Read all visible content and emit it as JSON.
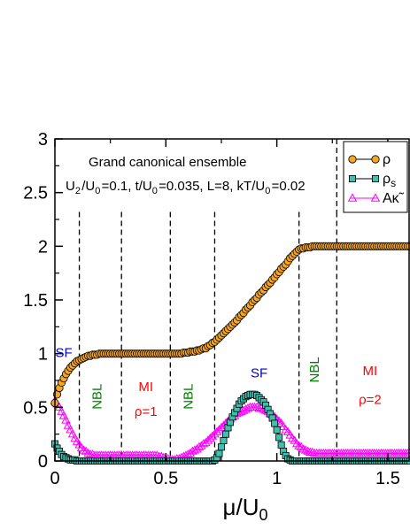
{
  "chart_data": {
    "type": "scatter",
    "xlabel": "μ/U",
    "xlabel_sub": "0",
    "xlim": [
      0,
      1.6
    ],
    "ylim": [
      0,
      3
    ],
    "x_ticks": [
      "0",
      "0.5",
      "1",
      "1.5"
    ],
    "x_tick_values": [
      0,
      0.5,
      1,
      1.5
    ],
    "y_ticks": [
      "0",
      "0.5",
      "1",
      "1.5",
      "2",
      "2.5",
      "3"
    ],
    "y_tick_values": [
      0,
      0.5,
      1,
      1.5,
      2,
      2.5,
      3
    ],
    "annotation_title": "Grand canonical ensemble",
    "annotation_params": [
      {
        "text": "U",
        "sub": "2"
      },
      {
        "text": "/U",
        "sub": "0"
      },
      {
        "text": "=0.1, t/U",
        "sub": "0"
      },
      {
        "text": "=0.035, L=8, kT/U",
        "sub": "0"
      },
      {
        "text": "=0.02",
        "sub": ""
      }
    ],
    "vlines": [
      0.11,
      0.3,
      0.52,
      0.72,
      1.1,
      1.27
    ],
    "regions": [
      {
        "text": "SF",
        "x": 0.04,
        "y": 0.97,
        "color": "#0000cc",
        "rotate": false
      },
      {
        "text": "NBL",
        "x": 0.21,
        "y": 0.6,
        "color": "#008000",
        "rotate": true
      },
      {
        "text": "MI",
        "x": 0.41,
        "y": 0.65,
        "color": "#ff0000",
        "rotate": false
      },
      {
        "text": "ρ=1",
        "x": 0.41,
        "y": 0.42,
        "color": "#ff0000",
        "rotate": false
      },
      {
        "text": "NBL",
        "x": 0.62,
        "y": 0.6,
        "color": "#008000",
        "rotate": true
      },
      {
        "text": "SF",
        "x": 0.92,
        "y": 0.78,
        "color": "#0000cc",
        "rotate": false
      },
      {
        "text": "NBL",
        "x": 1.19,
        "y": 0.85,
        "color": "#008000",
        "rotate": true
      },
      {
        "text": "MI",
        "x": 1.42,
        "y": 0.8,
        "color": "#ff0000",
        "rotate": false
      },
      {
        "text": "ρ=2",
        "x": 1.42,
        "y": 0.53,
        "color": "#ff0000",
        "rotate": false
      }
    ],
    "legend_position": "top-right",
    "series": [
      {
        "name": "ρ",
        "name_sub": "",
        "marker": "circle",
        "color": "#f5a623",
        "stroke": "#000000",
        "line": "#000000"
      },
      {
        "name": "ρ",
        "name_sub": "s",
        "marker": "square",
        "color": "#40c0b0",
        "stroke": "#000000",
        "line": "#000000"
      },
      {
        "name": "Aκ̃",
        "name_sub": "",
        "marker": "triangle",
        "color": "none",
        "stroke": "#ff00ff",
        "line": "#ff00ff"
      }
    ],
    "x": [
      0.0,
      0.01,
      0.02,
      0.03,
      0.04,
      0.05,
      0.06,
      0.07,
      0.08,
      0.09,
      0.1,
      0.11,
      0.12,
      0.13,
      0.14,
      0.15,
      0.16,
      0.17,
      0.18,
      0.19,
      0.2,
      0.21,
      0.22,
      0.23,
      0.24,
      0.25,
      0.26,
      0.27,
      0.28,
      0.29,
      0.3,
      0.31,
      0.32,
      0.33,
      0.34,
      0.35,
      0.36,
      0.37,
      0.38,
      0.39,
      0.4,
      0.41,
      0.42,
      0.43,
      0.44,
      0.45,
      0.46,
      0.47,
      0.48,
      0.49,
      0.5,
      0.51,
      0.52,
      0.53,
      0.54,
      0.55,
      0.56,
      0.57,
      0.58,
      0.59,
      0.6,
      0.61,
      0.62,
      0.63,
      0.64,
      0.65,
      0.66,
      0.67,
      0.68,
      0.69,
      0.7,
      0.71,
      0.72,
      0.73,
      0.74,
      0.75,
      0.76,
      0.77,
      0.78,
      0.79,
      0.8,
      0.81,
      0.82,
      0.83,
      0.84,
      0.85,
      0.86,
      0.87,
      0.88,
      0.89,
      0.9,
      0.91,
      0.92,
      0.93,
      0.94,
      0.95,
      0.96,
      0.97,
      0.98,
      0.99,
      1.0,
      1.01,
      1.02,
      1.03,
      1.04,
      1.05,
      1.06,
      1.07,
      1.08,
      1.09,
      1.1,
      1.11,
      1.12,
      1.13,
      1.14,
      1.15,
      1.16,
      1.17,
      1.18,
      1.19,
      1.2,
      1.21,
      1.22,
      1.23,
      1.24,
      1.25,
      1.26,
      1.27,
      1.28,
      1.29,
      1.3,
      1.31,
      1.32,
      1.33,
      1.34,
      1.35,
      1.36,
      1.37,
      1.38,
      1.39,
      1.4,
      1.41,
      1.42,
      1.43,
      1.44,
      1.45,
      1.46,
      1.47,
      1.48,
      1.49,
      1.5,
      1.51,
      1.52,
      1.53,
      1.54,
      1.55,
      1.56,
      1.57,
      1.58,
      1.59,
      1.6
    ],
    "rho": [
      0.54,
      0.62,
      0.68,
      0.73,
      0.77,
      0.81,
      0.84,
      0.87,
      0.89,
      0.91,
      0.93,
      0.94,
      0.95,
      0.96,
      0.97,
      0.98,
      0.98,
      0.99,
      0.99,
      0.99,
      1.0,
      1.0,
      1.0,
      1.0,
      1.0,
      1.0,
      1.0,
      1.0,
      1.0,
      1.0,
      1.0,
      1.0,
      1.0,
      1.0,
      1.0,
      1.0,
      1.0,
      1.0,
      1.0,
      1.0,
      1.0,
      1.0,
      1.0,
      1.0,
      1.0,
      1.0,
      1.0,
      1.0,
      1.0,
      1.0,
      1.0,
      1.0,
      1.0,
      1.0,
      1.0,
      1.0,
      1.0,
      1.0,
      1.01,
      1.01,
      1.01,
      1.02,
      1.02,
      1.02,
      1.03,
      1.03,
      1.04,
      1.05,
      1.05,
      1.07,
      1.08,
      1.1,
      1.11,
      1.13,
      1.15,
      1.17,
      1.19,
      1.21,
      1.23,
      1.25,
      1.27,
      1.29,
      1.31,
      1.34,
      1.36,
      1.38,
      1.41,
      1.43,
      1.45,
      1.48,
      1.5,
      1.52,
      1.55,
      1.57,
      1.59,
      1.62,
      1.64,
      1.66,
      1.69,
      1.71,
      1.74,
      1.76,
      1.79,
      1.81,
      1.83,
      1.86,
      1.89,
      1.91,
      1.93,
      1.95,
      1.97,
      1.98,
      1.98,
      1.99,
      1.99,
      1.99,
      2.0,
      2.0,
      2.0,
      2.0,
      2.0,
      2.0,
      2.0,
      2.0,
      2.0,
      2.0,
      2.0,
      2.0,
      2.0,
      2.0,
      2.0,
      2.0,
      2.0,
      2.0,
      2.0,
      2.0,
      2.0,
      2.0,
      2.0,
      2.0,
      2.0,
      2.0,
      2.0,
      2.0,
      2.0,
      2.0,
      2.0,
      2.0,
      2.0,
      2.0,
      2.0,
      2.0,
      2.0,
      2.0,
      2.0,
      2.0,
      2.0,
      2.0,
      2.0,
      2.0,
      2.0
    ],
    "rho_s": [
      0.16,
      0.12,
      0.09,
      0.06,
      0.04,
      0.03,
      0.02,
      0.01,
      0.01,
      0.01,
      0.0,
      0.0,
      0.0,
      0.0,
      0.0,
      0.0,
      0.0,
      0.0,
      0.0,
      0.0,
      0.0,
      0.0,
      0.0,
      0.0,
      0.0,
      0.0,
      0.0,
      0.0,
      0.0,
      0.0,
      0.0,
      0.0,
      0.0,
      0.0,
      0.0,
      0.0,
      0.0,
      0.0,
      0.0,
      0.0,
      0.0,
      0.0,
      0.0,
      0.0,
      0.0,
      0.0,
      0.0,
      0.0,
      0.0,
      0.0,
      0.0,
      0.0,
      0.0,
      0.0,
      0.0,
      0.0,
      0.0,
      0.0,
      0.0,
      0.0,
      0.0,
      0.0,
      0.0,
      0.0,
      0.0,
      0.0,
      0.0,
      0.0,
      0.0,
      0.0,
      0.0,
      0.0,
      0.01,
      0.03,
      0.07,
      0.13,
      0.19,
      0.25,
      0.31,
      0.36,
      0.41,
      0.45,
      0.49,
      0.53,
      0.56,
      0.58,
      0.6,
      0.61,
      0.62,
      0.62,
      0.62,
      0.61,
      0.59,
      0.57,
      0.55,
      0.52,
      0.48,
      0.44,
      0.4,
      0.35,
      0.29,
      0.22,
      0.15,
      0.09,
      0.05,
      0.02,
      0.01,
      0.0,
      0.0,
      0.0,
      0.0,
      0.0,
      0.0,
      0.0,
      0.0,
      0.0,
      0.0,
      0.0,
      0.0,
      0.0,
      0.0,
      0.0,
      0.0,
      0.0,
      0.0,
      0.0,
      0.0,
      0.0,
      0.0,
      0.0,
      0.0,
      0.0,
      0.0,
      0.0,
      0.0,
      0.0,
      0.0,
      0.0,
      0.0,
      0.0,
      0.0,
      0.0,
      0.0,
      0.0,
      0.0,
      0.0,
      0.0,
      0.0,
      0.0,
      0.0,
      0.0,
      0.0,
      0.0,
      0.0,
      0.0,
      0.0,
      0.0,
      0.0,
      0.0,
      0.0,
      0.0,
      0.0,
      0.0
    ],
    "a_kappa": [
      0.56,
      0.53,
      0.5,
      0.46,
      0.42,
      0.38,
      0.33,
      0.29,
      0.25,
      0.21,
      0.18,
      0.15,
      0.12,
      0.1,
      0.09,
      0.07,
      0.06,
      0.06,
      0.05,
      0.05,
      0.05,
      0.05,
      0.05,
      0.05,
      0.05,
      0.05,
      0.05,
      0.05,
      0.05,
      0.05,
      0.05,
      0.05,
      0.05,
      0.05,
      0.05,
      0.05,
      0.05,
      0.05,
      0.05,
      0.05,
      0.05,
      0.05,
      0.05,
      0.05,
      0.05,
      0.05,
      0.05,
      0.04,
      0.04,
      0.03,
      0.02,
      0.02,
      0.01,
      0.01,
      0.01,
      0.02,
      0.02,
      0.03,
      0.04,
      0.05,
      0.06,
      0.07,
      0.09,
      0.1,
      0.11,
      0.13,
      0.14,
      0.16,
      0.17,
      0.19,
      0.21,
      0.23,
      0.25,
      0.27,
      0.29,
      0.31,
      0.33,
      0.35,
      0.37,
      0.39,
      0.41,
      0.42,
      0.44,
      0.45,
      0.46,
      0.47,
      0.48,
      0.49,
      0.5,
      0.5,
      0.5,
      0.5,
      0.49,
      0.49,
      0.48,
      0.47,
      0.46,
      0.44,
      0.43,
      0.41,
      0.39,
      0.37,
      0.35,
      0.32,
      0.29,
      0.27,
      0.24,
      0.21,
      0.19,
      0.16,
      0.14,
      0.13,
      0.11,
      0.1,
      0.09,
      0.08,
      0.08,
      0.07,
      0.07,
      0.07,
      0.07,
      0.07,
      0.07,
      0.07,
      0.07,
      0.07,
      0.07,
      0.07,
      0.07,
      0.07,
      0.07,
      0.07,
      0.07,
      0.07,
      0.07,
      0.07,
      0.07,
      0.07,
      0.07,
      0.07,
      0.07,
      0.07,
      0.07,
      0.07,
      0.07,
      0.07,
      0.07,
      0.07,
      0.07,
      0.07,
      0.07,
      0.07,
      0.07,
      0.07,
      0.07,
      0.07,
      0.07,
      0.07,
      0.07,
      0.07,
      0.07
    ]
  }
}
